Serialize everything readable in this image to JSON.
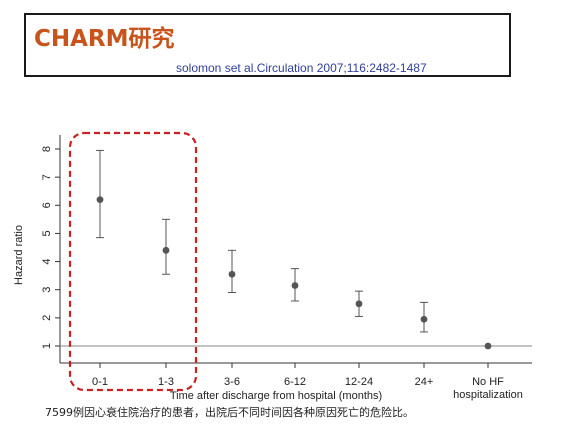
{
  "header": {
    "title": "CHARM研究",
    "citation": "solomon set al.Circulation 2007;116:2482-1487"
  },
  "caption": "7599例因心衰住院治疗的患者，出院后不同时间因各种原因死亡的危险比。",
  "colors": {
    "title": "#c8531b",
    "citation": "#2f3f9e",
    "highlight_box": "#cc1f1f",
    "points": "#555555",
    "reference_line": "#888888"
  },
  "chart_data": {
    "type": "scatter",
    "title": "",
    "xlabel": "Time after discharge from hospital (months)",
    "ylabel": "Hazard ratio",
    "ylim": [
      0.5,
      8.3
    ],
    "yticks": [
      1,
      2,
      3,
      4,
      5,
      6,
      7,
      8
    ],
    "categories": [
      "0-1",
      "1-3",
      "3-6",
      "6-12",
      "12-24",
      "24+",
      "No HF hospitalization"
    ],
    "category_label_lines": [
      [
        "0-1"
      ],
      [
        "1-3"
      ],
      [
        "3-6"
      ],
      [
        "6-12"
      ],
      [
        "12-24"
      ],
      [
        "24+"
      ],
      [
        "No HF",
        "hospitalization"
      ]
    ],
    "values": [
      6.2,
      4.4,
      3.55,
      3.15,
      2.5,
      1.95,
      1.0
    ],
    "ci_low": [
      4.85,
      3.55,
      2.9,
      2.6,
      2.05,
      1.5,
      1.0
    ],
    "ci_high": [
      7.95,
      5.5,
      4.4,
      3.75,
      2.95,
      2.55,
      1.0
    ],
    "reference_line": 1,
    "grid": false,
    "highlight_categories": [
      "0-1",
      "1-3"
    ]
  }
}
